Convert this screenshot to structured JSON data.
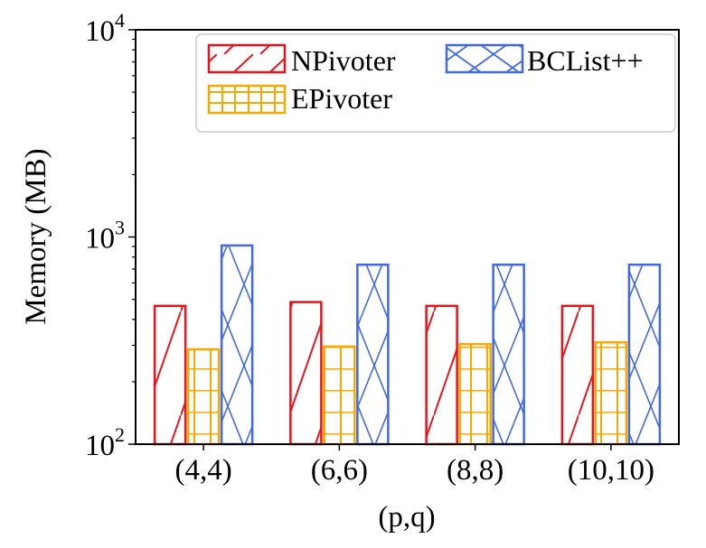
{
  "chart_data": {
    "type": "bar",
    "title": "",
    "xlabel": "(p,q)",
    "ylabel": "Memory (MB)",
    "yscale": "log",
    "ylim": [
      100,
      10000
    ],
    "yticks": [
      {
        "value": 100,
        "base": "10",
        "exp": "2"
      },
      {
        "value": 1000,
        "base": "10",
        "exp": "3"
      },
      {
        "value": 10000,
        "base": "10",
        "exp": "4"
      }
    ],
    "categories": [
      "(4,4)",
      "(6,6)",
      "(8,8)",
      "(10,10)"
    ],
    "series": [
      {
        "name": "NPivoter",
        "color": "#e8141c",
        "pattern": "diagonal",
        "values": [
          465,
          485,
          465,
          465
        ]
      },
      {
        "name": "EPivoter",
        "color": "#f5a800",
        "pattern": "grid",
        "values": [
          287,
          296,
          304,
          310
        ]
      },
      {
        "name": "BCList++",
        "color": "#4169e1",
        "pattern": "crosshatch",
        "values": [
          910,
          735,
          735,
          735
        ]
      }
    ],
    "legend": {
      "position": "top-right"
    }
  }
}
